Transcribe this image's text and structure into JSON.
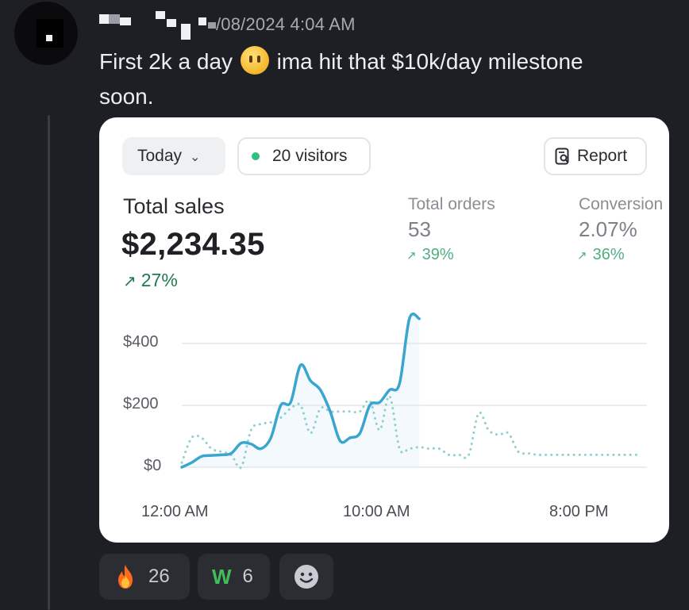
{
  "post": {
    "timestamp": "/08/2024 4:04 AM",
    "message_part1": "First 2k a day",
    "message_part2": "ima hit that $10k/day milestone",
    "message_part3": "soon."
  },
  "card": {
    "date_filter": "Today",
    "visitors_label": "20 visitors",
    "report_button": "Report",
    "total_sales": {
      "label": "Total sales",
      "value": "$2,234.35",
      "change": "27%"
    },
    "total_orders": {
      "label": "Total orders",
      "value": "53",
      "change": "39%"
    },
    "conversion": {
      "label": "Conversion",
      "value": "2.07%",
      "change": "36%"
    }
  },
  "chart_data": {
    "type": "line",
    "y_ticks": [
      "$400",
      "$200",
      "$0"
    ],
    "x_tick_labels": [
      "12:00 AM",
      "10:00 AM",
      "8:00 PM"
    ],
    "ylim": [
      0,
      500
    ],
    "grid": true,
    "colors": {
      "today": "#3aa6cf",
      "previous": "#8fd0cf"
    },
    "series": [
      {
        "style": "solid",
        "x": [
          0,
          0.5,
          1,
          1.5,
          2,
          2.5,
          3,
          3.5,
          4,
          4.5,
          5,
          5.5,
          6,
          6.5,
          7,
          7.5,
          8,
          8.5,
          9,
          9.5,
          10,
          10.5,
          11,
          11.5,
          12,
          12.5,
          13,
          13.5,
          14
        ],
        "values": [
          0,
          15,
          35,
          38,
          40,
          45,
          78,
          75,
          60,
          95,
          200,
          210,
          330,
          280,
          250,
          180,
          85,
          95,
          110,
          200,
          210,
          250,
          270,
          480,
          480,
          480,
          480,
          480,
          480
        ]
      },
      {
        "style": "dotted",
        "x": [
          0,
          0.5,
          1,
          1.5,
          2,
          2.5,
          3,
          3.5,
          4,
          4.5,
          5,
          5.5,
          6,
          6.5,
          7,
          7.5,
          8,
          8.5,
          9,
          9.5,
          10,
          10.5,
          11,
          11.5,
          12,
          12.5,
          13,
          13.5,
          14,
          14.5,
          15,
          15.5,
          16,
          16.5,
          17,
          17.5,
          18,
          18.5,
          19,
          19.5,
          20,
          20.5,
          21,
          21.5,
          22,
          22.5,
          23
        ],
        "values": [
          15,
          95,
          95,
          60,
          50,
          40,
          0,
          120,
          140,
          145,
          160,
          190,
          200,
          110,
          190,
          180,
          180,
          180,
          180,
          215,
          120,
          230,
          60,
          60,
          65,
          60,
          60,
          40,
          40,
          40,
          175,
          120,
          105,
          110,
          50,
          45,
          40,
          40,
          40,
          40,
          40,
          40,
          40,
          40,
          40,
          40,
          40
        ]
      }
    ]
  }
}
